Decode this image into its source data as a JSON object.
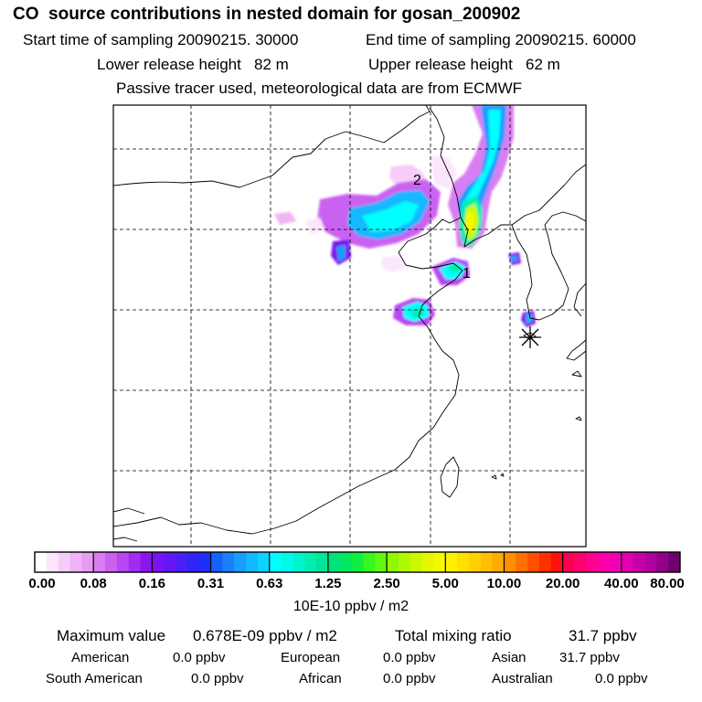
{
  "header": {
    "title": "CO  source contributions in nested domain for gosan_200902",
    "start_label": "Start time of sampling 20090215. 30000",
    "end_label": "End time of sampling 20090215. 60000",
    "lower_label": "Lower release height   82 m",
    "upper_label": "Upper release height   62 m",
    "tracer_label": "Passive tracer used, meteorological data are from ECMWF"
  },
  "map": {
    "markers": [
      {
        "label": "2"
      },
      {
        "label": "1"
      }
    ],
    "receptor_icon": "asterisk-icon"
  },
  "colorbar": {
    "unit": "10E-10 ppbv / m2",
    "ticks": [
      "0.00",
      "0.08",
      "0.16",
      "0.31",
      "0.63",
      "1.25",
      "2.50",
      "5.00",
      "10.00",
      "20.00",
      "40.00",
      "80.00"
    ],
    "colors": [
      [
        "#ffffff",
        "#fce6fc",
        "#f6cdf8",
        "#f0b4f6",
        "#e79cf3"
      ],
      [
        "#d97ef2",
        "#ca62f1",
        "#b846f1",
        "#a22cf0",
        "#8a16f0"
      ],
      [
        "#7a12f2",
        "#6416f4",
        "#4a1ef6",
        "#3024f8",
        "#1c30fa"
      ],
      [
        "#1660ff",
        "#1a80ff",
        "#1a9cff",
        "#12b8ff",
        "#0ad4ff"
      ],
      [
        "#00ffff",
        "#00fae8",
        "#00f4cc",
        "#00eeb0",
        "#00e694"
      ],
      [
        "#00e27a",
        "#00e860",
        "#10ee40",
        "#38f420",
        "#60f810"
      ],
      [
        "#90f800",
        "#b0f800",
        "#ccf800",
        "#e4f800",
        "#f6f800"
      ],
      [
        "#fff000",
        "#ffe000",
        "#ffd000",
        "#ffbe00",
        "#ffaa00"
      ],
      [
        "#ff9000",
        "#ff7000",
        "#ff5000",
        "#ff3000",
        "#ff1010"
      ],
      [
        "#ff0050",
        "#ff0070",
        "#ff0090",
        "#ff00a8",
        "#f000b4"
      ],
      [
        "#e000b0",
        "#c800a8",
        "#b000a0",
        "#920088",
        "#700070"
      ]
    ]
  },
  "footer": {
    "max_label": "Maximum value",
    "max_value": "0.678E-09 ppbv / m2",
    "total_label": "Total mixing ratio",
    "total_value": "31.7 ppbv",
    "regions": [
      {
        "name": "American",
        "value": "0.0 ppbv"
      },
      {
        "name": "European",
        "value": "0.0 ppbv"
      },
      {
        "name": "Asian",
        "value": "31.7 ppbv"
      },
      {
        "name": "South American",
        "value": "0.0 ppbv"
      },
      {
        "name": "African",
        "value": "0.0 ppbv"
      },
      {
        "name": "Australian",
        "value": "0.0 ppbv"
      }
    ]
  }
}
